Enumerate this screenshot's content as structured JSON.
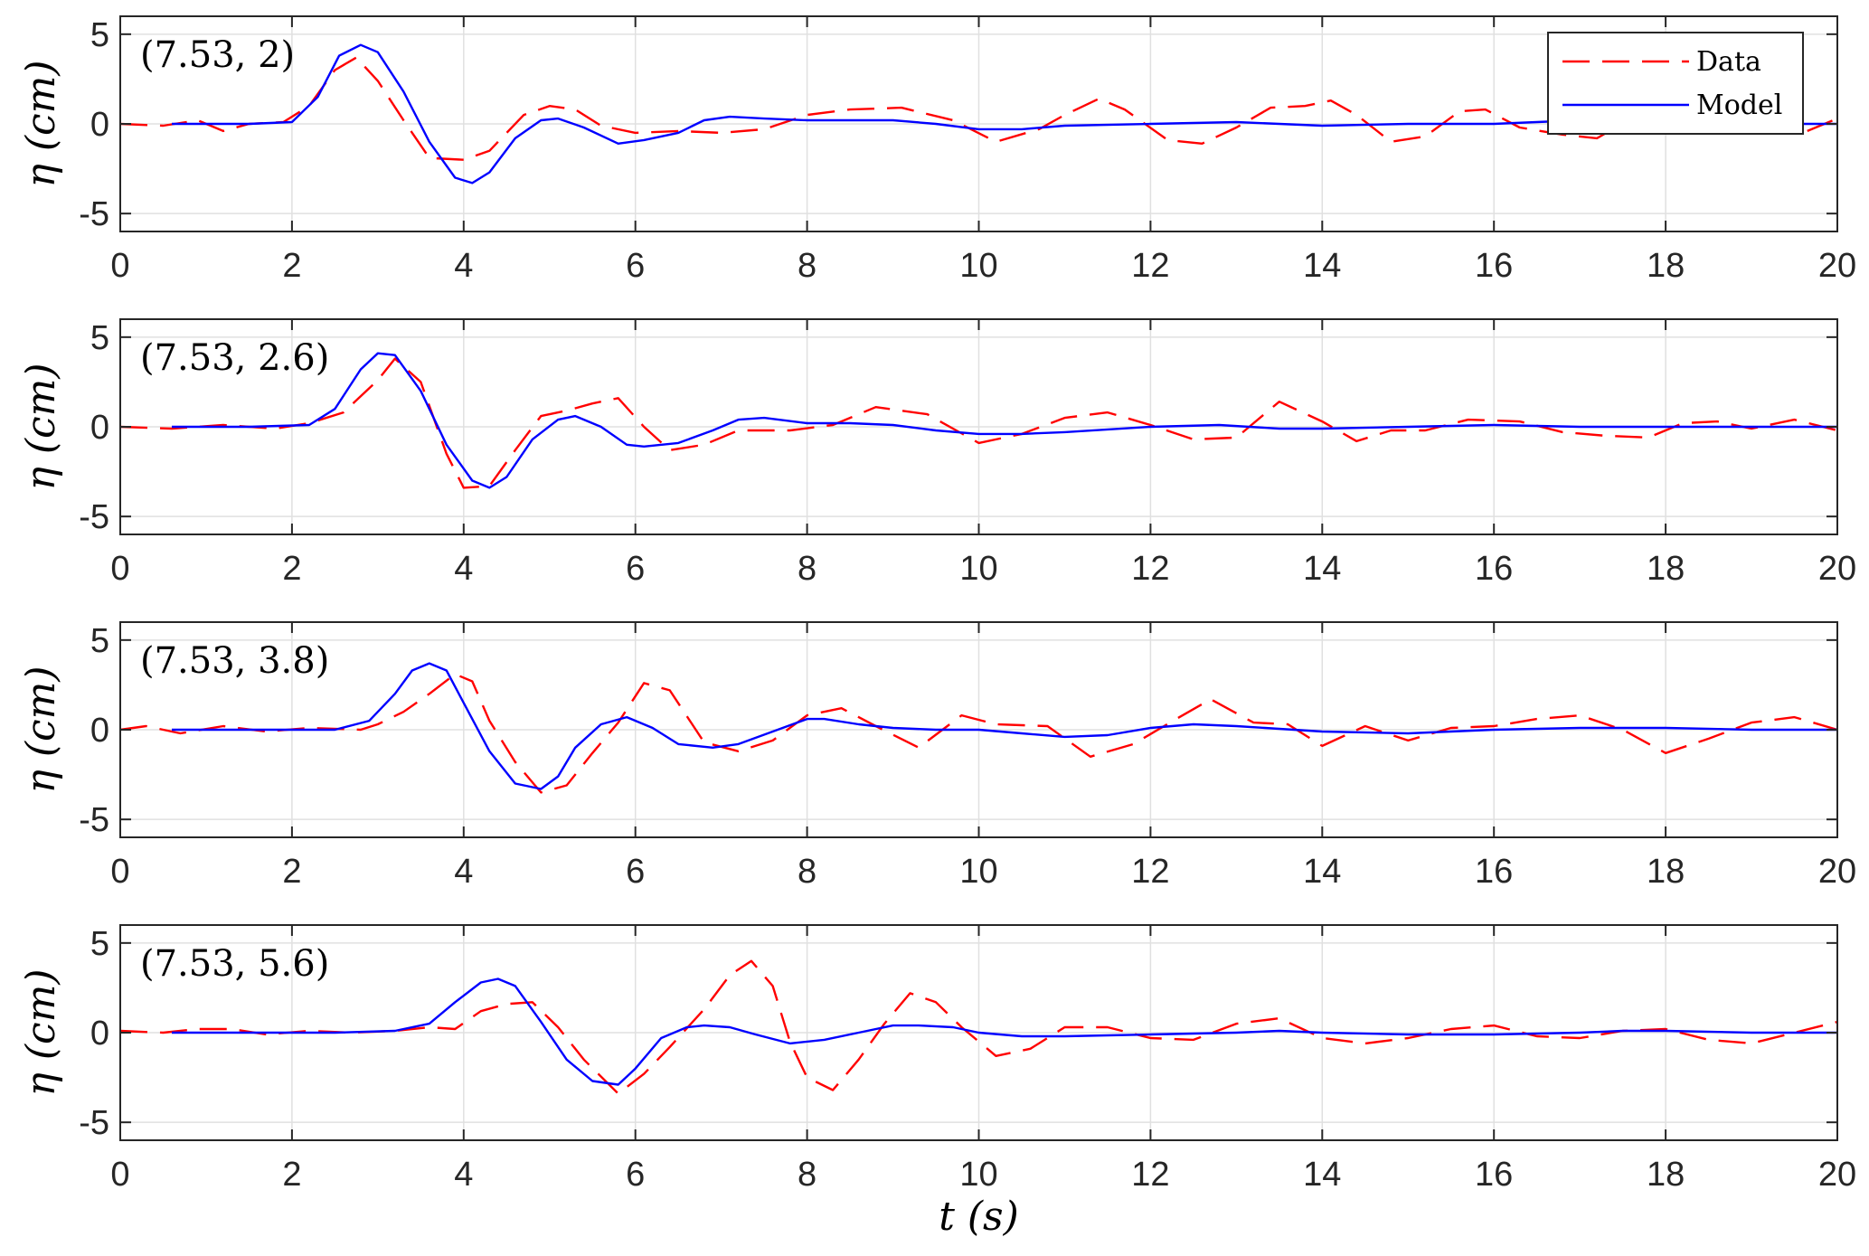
{
  "chart_data": {
    "type": "line",
    "xlabel": "t (s)",
    "ylabel": "η (cm)",
    "xlim": [
      0,
      20
    ],
    "ylim": [
      -6,
      6
    ],
    "x_ticks": [
      "0",
      "2",
      "4",
      "6",
      "8",
      "10",
      "12",
      "14",
      "16",
      "18",
      "20"
    ],
    "y_ticks": [
      "5",
      "0",
      "-5"
    ],
    "grid": true,
    "legend": {
      "placement": "top-right",
      "entries": [
        "Data",
        "Model"
      ]
    },
    "colors": {
      "Data": "#ff0000",
      "Model": "#0000ff"
    },
    "panels": [
      {
        "label": "(7.53, 2)",
        "series": [
          {
            "name": "Data",
            "style": "dashed",
            "x": [
              0,
              0.5,
              0.9,
              1.2,
              1.5,
              1.9,
              2.2,
              2.5,
              2.75,
              3.0,
              3.3,
              3.6,
              4.0,
              4.3,
              4.7,
              5.0,
              5.3,
              5.6,
              6.0,
              6.5,
              7.0,
              7.5,
              8.0,
              8.5,
              9.1,
              9.7,
              10.2,
              10.7,
              11.0,
              11.4,
              11.7,
              12.2,
              12.6,
              13.0,
              13.4,
              13.8,
              14.1,
              14.4,
              14.8,
              15.2,
              15.6,
              15.9,
              16.3,
              16.8,
              17.2,
              17.6,
              18.0,
              18.4,
              18.8,
              19.2,
              19.6,
              20.0
            ],
            "y": [
              0,
              -0.1,
              0.2,
              -0.4,
              0,
              0.1,
              1.0,
              3.0,
              3.7,
              2.4,
              0.2,
              -1.9,
              -2.0,
              -1.5,
              0.5,
              1.0,
              0.8,
              -0.1,
              -0.5,
              -0.4,
              -0.5,
              -0.3,
              0.5,
              0.8,
              0.9,
              0.2,
              -1.0,
              -0.3,
              0.5,
              1.4,
              0.8,
              -0.9,
              -1.1,
              -0.2,
              0.9,
              1.0,
              1.3,
              0.5,
              -1.0,
              -0.7,
              0.7,
              0.8,
              -0.2,
              -0.6,
              -0.8,
              0.3,
              0.5,
              0.3,
              -0.2,
              0.2,
              -0.5,
              0.3
            ]
          },
          {
            "name": "Model",
            "style": "solid",
            "x": [
              0.6,
              1.5,
              2.0,
              2.3,
              2.55,
              2.8,
              3.0,
              3.3,
              3.6,
              3.9,
              4.1,
              4.3,
              4.6,
              4.9,
              5.1,
              5.4,
              5.8,
              6.1,
              6.5,
              6.8,
              7.1,
              7.5,
              8.0,
              8.5,
              9.0,
              9.5,
              10.0,
              10.5,
              11.0,
              12.0,
              13.0,
              14.0,
              15.0,
              16.0,
              17.0,
              18.0,
              19.0,
              20.0
            ],
            "y": [
              0,
              0,
              0.1,
              1.5,
              3.8,
              4.4,
              4.0,
              1.8,
              -1.0,
              -3.0,
              -3.3,
              -2.7,
              -0.8,
              0.2,
              0.3,
              -0.2,
              -1.1,
              -0.9,
              -0.5,
              0.2,
              0.4,
              0.3,
              0.2,
              0.2,
              0.2,
              0,
              -0.3,
              -0.3,
              -0.1,
              0,
              0.1,
              -0.1,
              0,
              0,
              0.2,
              0.1,
              0,
              0
            ]
          }
        ]
      },
      {
        "label": "(7.53, 2.6)",
        "series": [
          {
            "name": "Data",
            "style": "dashed",
            "x": [
              0,
              0.6,
              1.2,
              1.8,
              2.2,
              2.6,
              3.0,
              3.2,
              3.5,
              3.8,
              4.0,
              4.3,
              4.6,
              4.9,
              5.2,
              5.5,
              5.8,
              6.1,
              6.4,
              6.8,
              7.2,
              7.8,
              8.3,
              8.8,
              9.4,
              10.0,
              10.5,
              11.0,
              11.5,
              12.0,
              12.5,
              13.0,
              13.5,
              14.0,
              14.4,
              14.8,
              15.2,
              15.7,
              16.3,
              16.8,
              17.3,
              17.8,
              18.2,
              18.6,
              19.0,
              19.5,
              20.0
            ],
            "y": [
              0,
              -0.1,
              0.1,
              -0.1,
              0.2,
              0.8,
              2.6,
              3.8,
              2.5,
              -1.5,
              -3.4,
              -3.3,
              -1.3,
              0.6,
              0.9,
              1.3,
              1.6,
              0,
              -1.3,
              -1.0,
              -0.2,
              -0.2,
              0.1,
              1.1,
              0.7,
              -0.9,
              -0.4,
              0.5,
              0.8,
              0.1,
              -0.7,
              -0.6,
              1.4,
              0.3,
              -0.8,
              -0.2,
              -0.2,
              0.4,
              0.3,
              -0.3,
              -0.5,
              -0.6,
              0.2,
              0.3,
              -0.1,
              0.4,
              -0.2
            ]
          },
          {
            "name": "Model",
            "style": "solid",
            "x": [
              0.6,
              1.5,
              2.2,
              2.5,
              2.8,
              3.0,
              3.2,
              3.5,
              3.8,
              4.1,
              4.3,
              4.5,
              4.8,
              5.1,
              5.3,
              5.6,
              5.9,
              6.1,
              6.5,
              6.9,
              7.2,
              7.5,
              8.0,
              8.5,
              9.0,
              9.5,
              10.0,
              10.5,
              11.0,
              12.0,
              12.8,
              13.5,
              14.0,
              15.0,
              16.0,
              17.0,
              18.0,
              19.0,
              20.0
            ],
            "y": [
              0,
              0,
              0.1,
              1.0,
              3.2,
              4.1,
              4.0,
              2.0,
              -1.0,
              -3.0,
              -3.4,
              -2.8,
              -0.7,
              0.4,
              0.6,
              0,
              -1.0,
              -1.1,
              -0.9,
              -0.2,
              0.4,
              0.5,
              0.2,
              0.2,
              0.1,
              -0.2,
              -0.4,
              -0.4,
              -0.3,
              0,
              0.1,
              -0.1,
              -0.1,
              0,
              0.1,
              0,
              0,
              0,
              0
            ]
          }
        ]
      },
      {
        "label": "(7.53, 3.8)",
        "series": [
          {
            "name": "Data",
            "style": "dashed",
            "x": [
              0,
              0.3,
              0.7,
              1.2,
              1.7,
              2.2,
              2.8,
              3.0,
              3.3,
              3.6,
              3.9,
              4.1,
              4.3,
              4.6,
              4.9,
              5.2,
              5.5,
              5.8,
              6.1,
              6.4,
              6.8,
              7.2,
              7.6,
              8.0,
              8.4,
              8.8,
              9.3,
              9.8,
              10.2,
              10.8,
              11.3,
              11.8,
              12.3,
              12.7,
              13.2,
              13.6,
              14.0,
              14.5,
              15.0,
              15.5,
              16.0,
              16.5,
              17.0,
              17.5,
              18.0,
              18.5,
              19.0,
              19.5,
              20.0
            ],
            "y": [
              0,
              0.2,
              -0.2,
              0.2,
              -0.1,
              0.1,
              0,
              0.3,
              1.0,
              2.0,
              3.1,
              2.7,
              0.5,
              -1.8,
              -3.5,
              -3.1,
              -1.3,
              0.4,
              2.6,
              2.2,
              -0.7,
              -1.2,
              -0.6,
              0.8,
              1.2,
              0.2,
              -1.0,
              0.8,
              0.3,
              0.2,
              -1.5,
              -0.8,
              0.6,
              1.7,
              0.4,
              0.3,
              -0.9,
              0.2,
              -0.6,
              0.1,
              0.2,
              0.6,
              0.8,
              0,
              -1.3,
              -0.5,
              0.4,
              0.7,
              0
            ]
          },
          {
            "name": "Model",
            "style": "solid",
            "x": [
              0.6,
              1.5,
              2.5,
              2.9,
              3.2,
              3.4,
              3.6,
              3.8,
              4.0,
              4.3,
              4.6,
              4.9,
              5.1,
              5.3,
              5.6,
              5.9,
              6.2,
              6.5,
              6.9,
              7.2,
              7.6,
              8.0,
              8.2,
              8.6,
              9.0,
              9.5,
              10.0,
              10.5,
              11.0,
              11.5,
              12.0,
              12.5,
              13.0,
              14.0,
              15.0,
              16.0,
              17.0,
              18.0,
              19.0,
              20.0
            ],
            "y": [
              0,
              0,
              0,
              0.5,
              2.0,
              3.3,
              3.7,
              3.3,
              1.5,
              -1.2,
              -3.0,
              -3.3,
              -2.6,
              -1.0,
              0.3,
              0.7,
              0.1,
              -0.8,
              -1.0,
              -0.8,
              -0.1,
              0.6,
              0.6,
              0.3,
              0.1,
              0,
              0,
              -0.2,
              -0.4,
              -0.3,
              0.1,
              0.3,
              0.2,
              -0.1,
              -0.2,
              0,
              0.1,
              0.1,
              0,
              0
            ]
          }
        ]
      },
      {
        "label": "(7.53, 5.6)",
        "series": [
          {
            "name": "Data",
            "style": "dashed",
            "x": [
              0,
              0.5,
              0.9,
              1.3,
              1.7,
              2.2,
              2.7,
              3.2,
              3.6,
              3.9,
              4.2,
              4.5,
              4.8,
              5.1,
              5.4,
              5.8,
              6.1,
              6.4,
              6.8,
              7.1,
              7.35,
              7.6,
              7.8,
              8.0,
              8.3,
              8.6,
              8.9,
              9.2,
              9.5,
              9.8,
              10.2,
              10.6,
              11.0,
              11.5,
              12.0,
              12.5,
              13.0,
              13.5,
              14.0,
              14.5,
              15.0,
              15.5,
              16.0,
              16.5,
              17.0,
              17.5,
              18.0,
              18.5,
              19.0,
              19.5,
              20.0
            ],
            "y": [
              0.1,
              0,
              0.2,
              0.2,
              -0.1,
              0.1,
              0,
              0.1,
              0.3,
              0.2,
              1.2,
              1.6,
              1.7,
              0.3,
              -1.5,
              -3.4,
              -2.3,
              -0.8,
              1.3,
              3.2,
              4.0,
              2.6,
              -0.5,
              -2.5,
              -3.2,
              -1.5,
              0.5,
              2.2,
              1.7,
              0.3,
              -1.3,
              -0.9,
              0.3,
              0.3,
              -0.3,
              -0.4,
              0.5,
              0.8,
              -0.3,
              -0.6,
              -0.3,
              0.2,
              0.4,
              -0.2,
              -0.3,
              0.1,
              0.2,
              -0.4,
              -0.6,
              0,
              0.6
            ]
          },
          {
            "name": "Model",
            "style": "solid",
            "x": [
              0.6,
              1.5,
              2.5,
              3.2,
              3.6,
              3.9,
              4.2,
              4.4,
              4.6,
              4.9,
              5.2,
              5.5,
              5.8,
              6.0,
              6.3,
              6.6,
              6.8,
              7.1,
              7.4,
              7.8,
              8.2,
              8.6,
              9.0,
              9.3,
              9.7,
              10.0,
              10.5,
              11.0,
              12.0,
              13.0,
              13.5,
              14.0,
              15.0,
              16.0,
              17.0,
              17.5,
              18.0,
              19.0,
              20.0
            ],
            "y": [
              0,
              0,
              0,
              0.1,
              0.5,
              1.7,
              2.8,
              3.0,
              2.6,
              0.6,
              -1.5,
              -2.7,
              -2.9,
              -2.0,
              -0.3,
              0.3,
              0.4,
              0.3,
              -0.1,
              -0.6,
              -0.4,
              0,
              0.4,
              0.4,
              0.3,
              0,
              -0.2,
              -0.2,
              -0.1,
              0,
              0.1,
              0,
              -0.1,
              -0.1,
              0,
              0.1,
              0.1,
              0,
              0
            ]
          }
        ]
      }
    ]
  }
}
